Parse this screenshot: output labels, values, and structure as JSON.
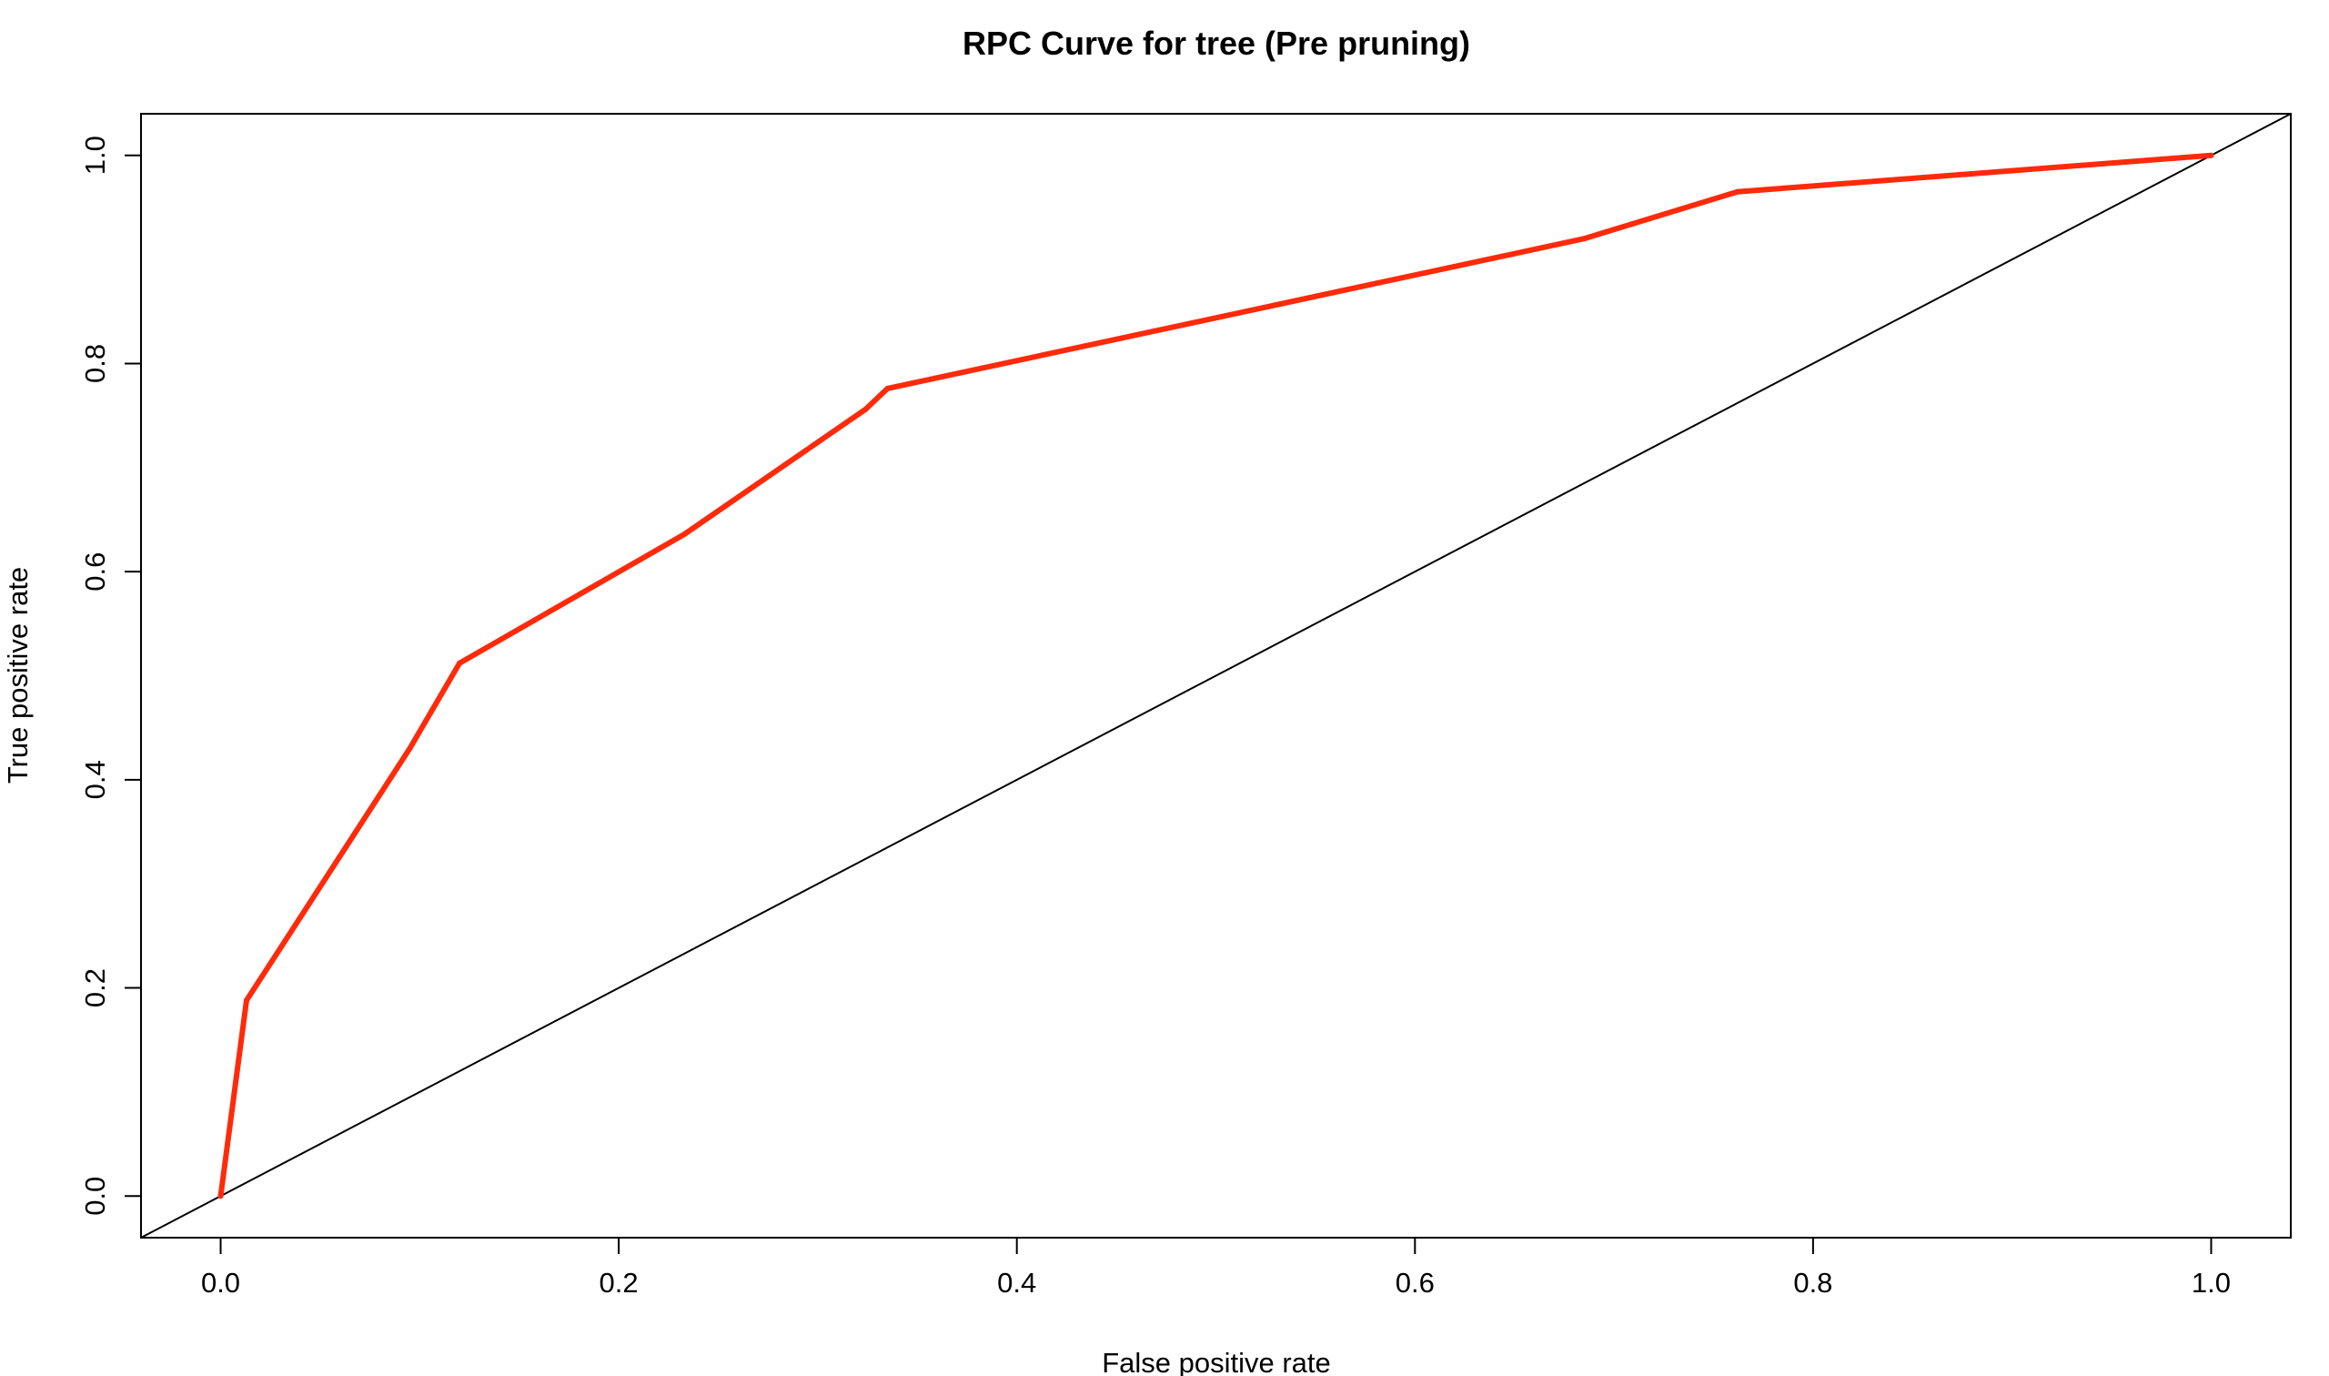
{
  "chart_data": {
    "type": "line",
    "title": "RPC Curve for tree (Pre pruning)",
    "xlabel": "False positive rate",
    "ylabel": "True positive rate",
    "xlim": [
      -0.04,
      1.04
    ],
    "ylim": [
      -0.04,
      1.04
    ],
    "x_ticks": [
      "0.0",
      "0.2",
      "0.4",
      "0.6",
      "0.8",
      "1.0"
    ],
    "y_ticks": [
      "0.0",
      "0.2",
      "0.4",
      "0.6",
      "0.8",
      "1.0"
    ],
    "grid": false,
    "legend": "none",
    "series": [
      {
        "color": "#ff2a0a",
        "x": [
          0.0,
          0.013,
          0.095,
          0.12,
          0.233,
          0.324,
          0.335,
          0.685,
          0.762,
          1.0
        ],
        "y": [
          0.0,
          0.188,
          0.43,
          0.512,
          0.636,
          0.756,
          0.776,
          0.92,
          0.965,
          1.0
        ]
      }
    ],
    "reference_line": {
      "type": "diagonal",
      "color": "#000000",
      "from": [
        -0.04,
        -0.04
      ],
      "to": [
        1.04,
        1.04
      ]
    }
  }
}
